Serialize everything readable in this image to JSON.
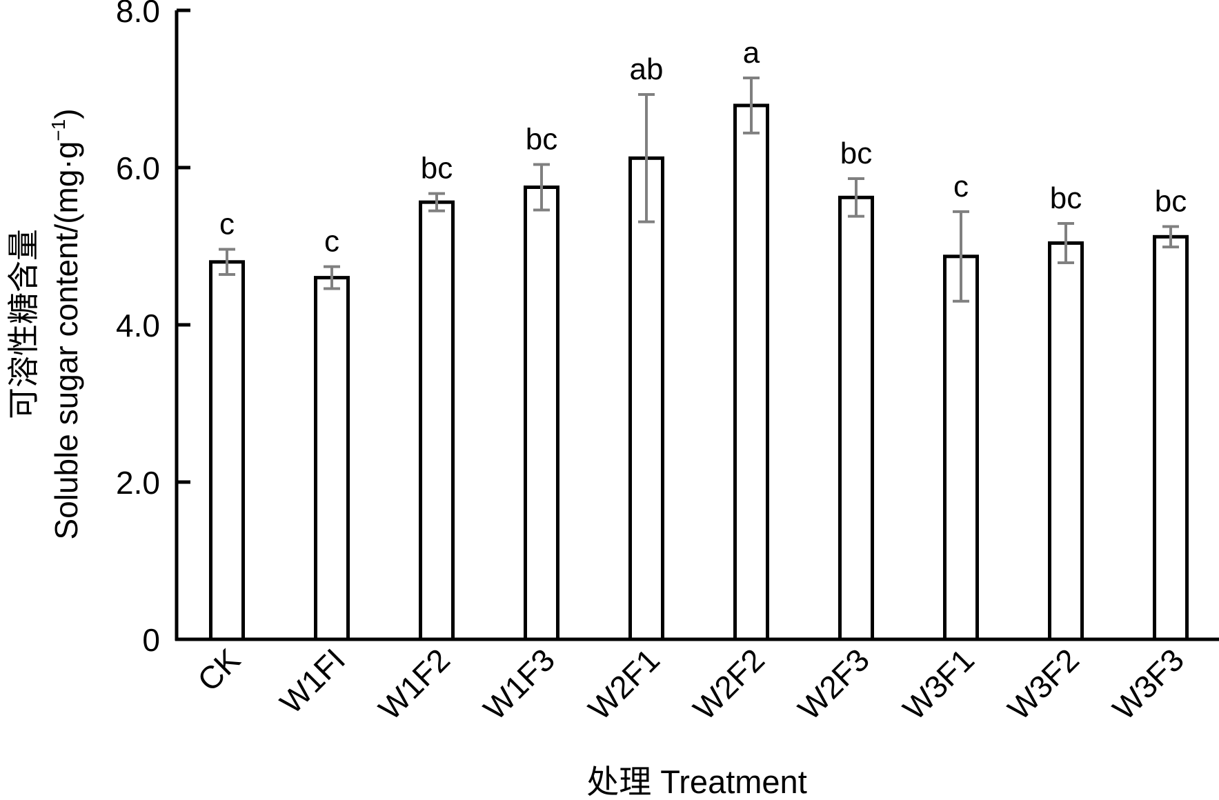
{
  "chart_data": {
    "type": "bar",
    "title": "",
    "categories": [
      "CK",
      "W1FI",
      "W1F2",
      "W1F3",
      "W2F1",
      "W2F2",
      "W2F3",
      "W3F1",
      "W3F2",
      "W3F3"
    ],
    "series": [
      {
        "name": "Soluble sugar content",
        "values": [
          4.8,
          4.6,
          5.56,
          5.75,
          6.12,
          6.79,
          5.62,
          4.87,
          5.04,
          5.12
        ],
        "errors": [
          0.16,
          0.14,
          0.11,
          0.29,
          0.81,
          0.35,
          0.24,
          0.57,
          0.25,
          0.13
        ],
        "letters": [
          "c",
          "c",
          "bc",
          "bc",
          "ab",
          "a",
          "bc",
          "c",
          "bc",
          "bc"
        ]
      }
    ],
    "xlabel": "处理 Treatment",
    "ylabel_cn": "可溶性糖含量",
    "ylabel_en": "Soluble  sugar content/(mg·g",
    "ylabel_en_sup": "−1",
    "ylabel_en_close": ")",
    "ylim": [
      0,
      8
    ],
    "yticks": [
      0,
      2,
      4,
      6,
      8
    ],
    "ytick_labels": [
      "0",
      "2.0",
      "4.0",
      "6.0",
      "8.0"
    ],
    "grid": false,
    "colors": {
      "bar_fill": "#ffffff",
      "bar_stroke": "#000000",
      "error": "#808080"
    }
  }
}
